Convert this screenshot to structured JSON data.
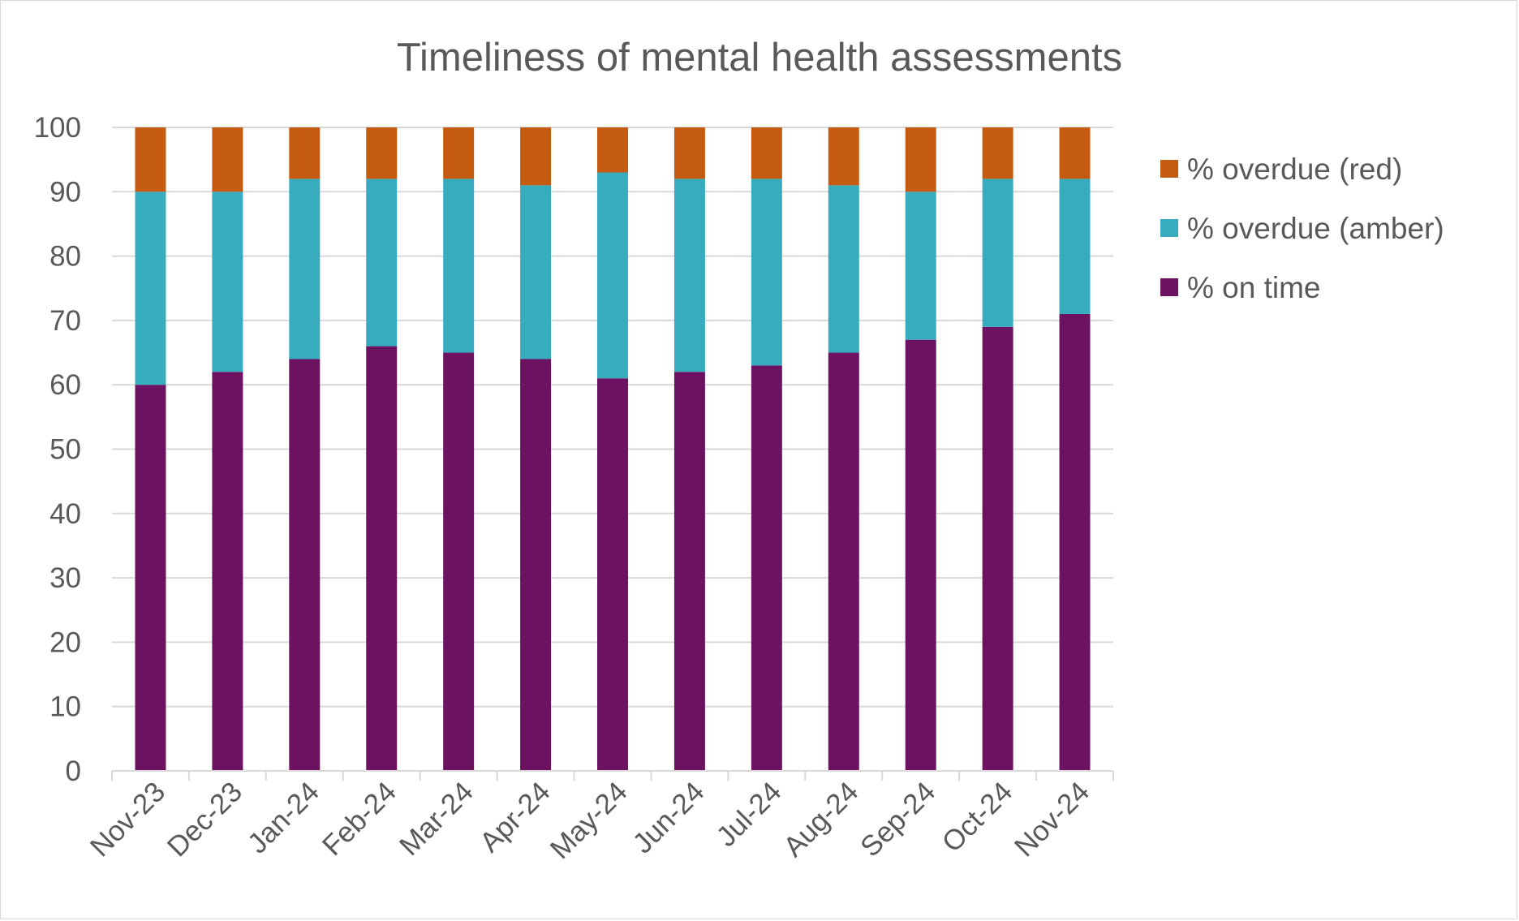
{
  "chart_data": {
    "type": "bar",
    "stacked": true,
    "title": "Timeliness of mental health assessments",
    "xlabel": "",
    "ylabel": "",
    "ylim": [
      0,
      100
    ],
    "yticks": [
      0,
      10,
      20,
      30,
      40,
      50,
      60,
      70,
      80,
      90,
      100
    ],
    "grid": true,
    "legend_position": "right",
    "categories": [
      "Nov-23",
      "Dec-23",
      "Jan-24",
      "Feb-24",
      "Mar-24",
      "Apr-24",
      "May-24",
      "Jun-24",
      "Jul-24",
      "Aug-24",
      "Sep-24",
      "Oct-24",
      "Nov-24"
    ],
    "series": [
      {
        "name": "% on time",
        "color": "#6d1260",
        "values": [
          60,
          62,
          64,
          66,
          65,
          64,
          61,
          62,
          63,
          65,
          67,
          69,
          71
        ]
      },
      {
        "name": "% overdue (amber)",
        "color": "#37acbf",
        "values": [
          30,
          28,
          28,
          26,
          27,
          27,
          32,
          30,
          29,
          26,
          23,
          23,
          21
        ]
      },
      {
        "name": "% overdue (red)",
        "color": "#c55a11",
        "values": [
          10,
          10,
          8,
          8,
          8,
          9,
          7,
          8,
          8,
          9,
          10,
          8,
          8
        ]
      }
    ],
    "legend_order": [
      "% overdue (red)",
      "% overdue (amber)",
      "% on time"
    ]
  }
}
